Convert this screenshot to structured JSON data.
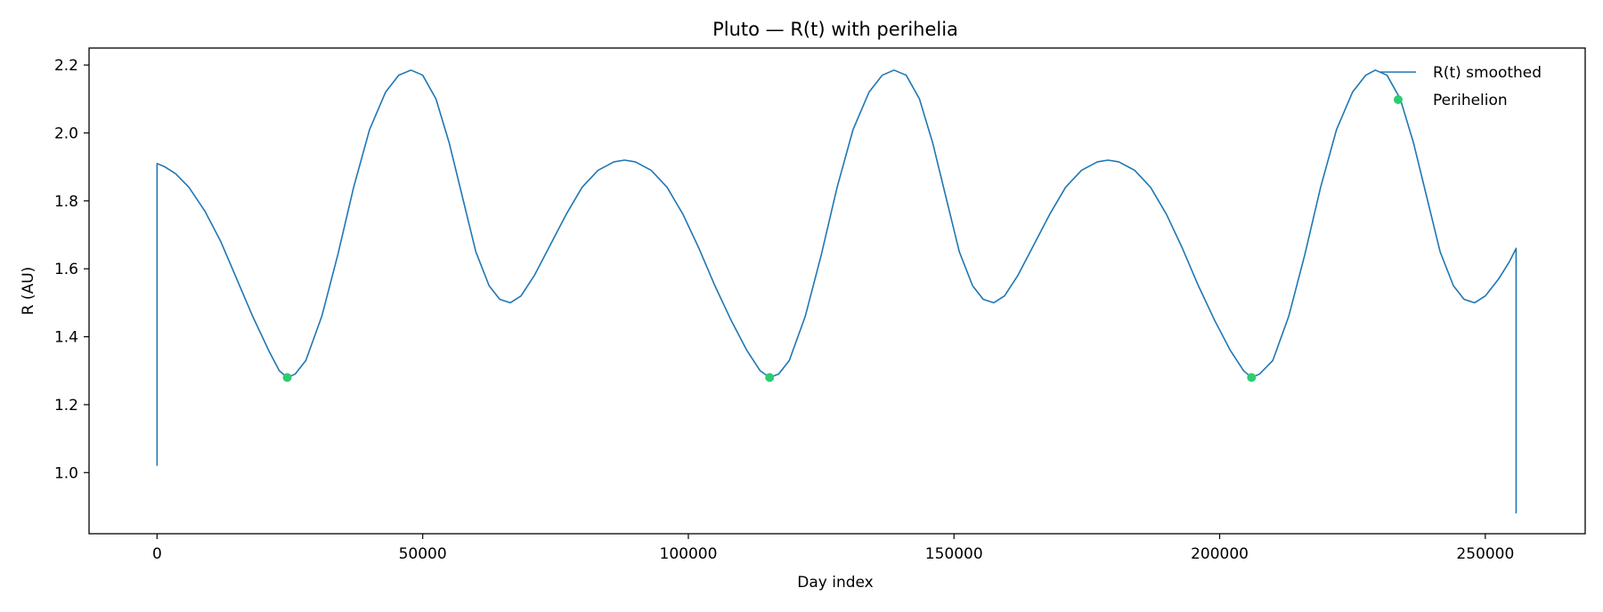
{
  "chart_data": {
    "type": "line",
    "title": "Pluto — R(t) with perihelia",
    "xlabel": "Day index",
    "ylabel": "R (AU)",
    "xlim": [
      -12800,
      268800
    ],
    "ylim": [
      0.82,
      2.25
    ],
    "xticks": [
      0,
      50000,
      100000,
      150000,
      200000,
      250000
    ],
    "yticks": [
      1.0,
      1.2,
      1.4,
      1.6,
      1.8,
      2.0,
      2.2
    ],
    "grid": false,
    "legend_position": "top-right",
    "series": [
      {
        "name": "R(t) smoothed",
        "color": "#1f77b4",
        "style": "line",
        "points": [
          [
            0,
            1.02
          ],
          [
            0,
            1.91
          ],
          [
            1500,
            1.9
          ],
          [
            3500,
            1.88
          ],
          [
            6000,
            1.84
          ],
          [
            9000,
            1.77
          ],
          [
            12000,
            1.68
          ],
          [
            15000,
            1.57
          ],
          [
            18000,
            1.46
          ],
          [
            21000,
            1.36
          ],
          [
            23000,
            1.3
          ],
          [
            24500,
            1.28
          ],
          [
            26000,
            1.29
          ],
          [
            28000,
            1.33
          ],
          [
            31000,
            1.46
          ],
          [
            34000,
            1.64
          ],
          [
            37000,
            1.84
          ],
          [
            40000,
            2.01
          ],
          [
            43000,
            2.12
          ],
          [
            45500,
            2.17
          ],
          [
            47800,
            2.185
          ],
          [
            50000,
            2.17
          ],
          [
            52500,
            2.1
          ],
          [
            55000,
            1.97
          ],
          [
            57500,
            1.81
          ],
          [
            60000,
            1.65
          ],
          [
            62500,
            1.55
          ],
          [
            64500,
            1.51
          ],
          [
            66500,
            1.5
          ],
          [
            68500,
            1.52
          ],
          [
            71000,
            1.58
          ],
          [
            74000,
            1.67
          ],
          [
            77000,
            1.76
          ],
          [
            80000,
            1.84
          ],
          [
            83000,
            1.89
          ],
          [
            86000,
            1.915
          ],
          [
            88000,
            1.92
          ],
          [
            90000,
            1.915
          ],
          [
            93000,
            1.89
          ],
          [
            96000,
            1.84
          ],
          [
            99000,
            1.76
          ],
          [
            102000,
            1.66
          ],
          [
            105000,
            1.55
          ],
          [
            108000,
            1.45
          ],
          [
            111000,
            1.36
          ],
          [
            113500,
            1.3
          ],
          [
            115300,
            1.28
          ],
          [
            117000,
            1.29
          ],
          [
            119000,
            1.33
          ],
          [
            122000,
            1.46
          ],
          [
            125000,
            1.64
          ],
          [
            128000,
            1.84
          ],
          [
            131000,
            2.01
          ],
          [
            134000,
            2.12
          ],
          [
            136500,
            2.17
          ],
          [
            138700,
            2.185
          ],
          [
            141000,
            2.17
          ],
          [
            143500,
            2.1
          ],
          [
            146000,
            1.97
          ],
          [
            148500,
            1.81
          ],
          [
            151000,
            1.65
          ],
          [
            153500,
            1.55
          ],
          [
            155500,
            1.51
          ],
          [
            157500,
            1.5
          ],
          [
            159500,
            1.52
          ],
          [
            162000,
            1.58
          ],
          [
            165000,
            1.67
          ],
          [
            168000,
            1.76
          ],
          [
            171000,
            1.84
          ],
          [
            174000,
            1.89
          ],
          [
            177000,
            1.915
          ],
          [
            179000,
            1.92
          ],
          [
            181000,
            1.915
          ],
          [
            184000,
            1.89
          ],
          [
            187000,
            1.84
          ],
          [
            190000,
            1.76
          ],
          [
            193000,
            1.66
          ],
          [
            196000,
            1.55
          ],
          [
            199000,
            1.45
          ],
          [
            202000,
            1.36
          ],
          [
            204500,
            1.3
          ],
          [
            206000,
            1.28
          ],
          [
            207500,
            1.29
          ],
          [
            210000,
            1.33
          ],
          [
            213000,
            1.46
          ],
          [
            216000,
            1.64
          ],
          [
            219000,
            1.84
          ],
          [
            222000,
            2.01
          ],
          [
            225000,
            2.12
          ],
          [
            227500,
            2.17
          ],
          [
            229300,
            2.185
          ],
          [
            231500,
            2.17
          ],
          [
            234000,
            2.1
          ],
          [
            236500,
            1.97
          ],
          [
            239000,
            1.81
          ],
          [
            241500,
            1.65
          ],
          [
            244000,
            1.55
          ],
          [
            246000,
            1.51
          ],
          [
            248000,
            1.5
          ],
          [
            250000,
            1.52
          ],
          [
            252500,
            1.57
          ],
          [
            254500,
            1.62
          ],
          [
            255800,
            1.66
          ],
          [
            255800,
            0.88
          ]
        ]
      },
      {
        "name": "Perihelion",
        "color": "#2ecc71",
        "style": "marker",
        "points": [
          [
            24500,
            1.28
          ],
          [
            115300,
            1.28
          ],
          [
            206000,
            1.28
          ]
        ]
      }
    ]
  }
}
